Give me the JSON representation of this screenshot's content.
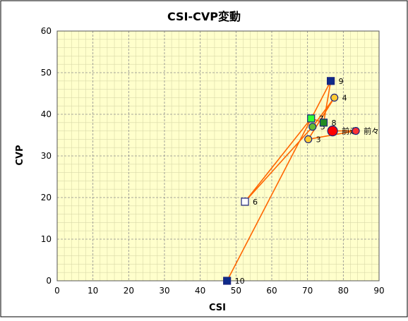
{
  "chart_data": {
    "type": "scatter",
    "title": "CSI-CVP変動",
    "xlabel": "CSI",
    "ylabel": "CVP",
    "xlim": [
      0,
      90
    ],
    "ylim": [
      0,
      60
    ],
    "x_ticks": [
      "0",
      "10",
      "20",
      "30",
      "40",
      "50",
      "60",
      "70",
      "80",
      "90"
    ],
    "y_ticks": [
      "0",
      "10",
      "20",
      "30",
      "40",
      "50",
      "60"
    ],
    "grid": true,
    "background": "#ffffcc",
    "line_color": "#ff6600",
    "path_order": [
      "10",
      "9",
      "8",
      "7",
      "6",
      "5",
      "4",
      "3",
      "前々",
      "前走"
    ],
    "points": [
      {
        "label": "3",
        "x": 70.2,
        "y": 34,
        "marker": "circle",
        "fill": "#ffcc33",
        "stroke": "#1a237e"
      },
      {
        "label": "4",
        "x": 77.5,
        "y": 44,
        "marker": "circle",
        "fill": "#ffcc33",
        "stroke": "#1a237e"
      },
      {
        "label": "5",
        "x": 71.4,
        "y": 37,
        "marker": "circle",
        "fill": "#66bb33",
        "stroke": "#1a237e"
      },
      {
        "label": "6",
        "x": 52.5,
        "y": 19,
        "marker": "square",
        "fill": "#ffffff",
        "stroke": "#1a237e"
      },
      {
        "label": "7",
        "x": 71.0,
        "y": 39,
        "marker": "square",
        "fill": "#33ff33",
        "stroke": "#1a237e"
      },
      {
        "label": "8",
        "x": 74.5,
        "y": 38,
        "marker": "square",
        "fill": "#228b22",
        "stroke": "#1a237e"
      },
      {
        "label": "9",
        "x": 76.5,
        "y": 48,
        "marker": "square",
        "fill": "#0d2a8a",
        "stroke": "#1a237e"
      },
      {
        "label": "10",
        "x": 47.5,
        "y": 0,
        "marker": "square",
        "fill": "#0d2a8a",
        "stroke": "#1a237e"
      },
      {
        "label": "前走",
        "x": 77.0,
        "y": 36,
        "marker": "circle-large",
        "fill": "#ff0000",
        "stroke": "#1a237e"
      },
      {
        "label": "前々",
        "x": 83.5,
        "y": 36,
        "marker": "circle",
        "fill": "#ff3333",
        "stroke": "#1a237e"
      }
    ]
  }
}
